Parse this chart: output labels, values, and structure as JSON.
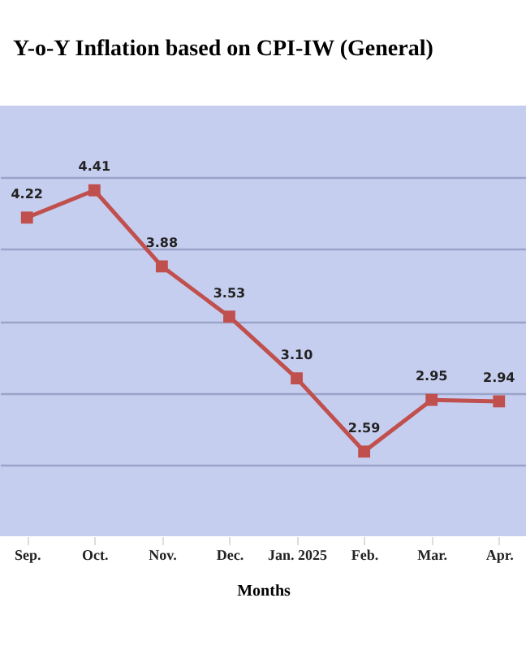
{
  "chart_data": {
    "type": "line",
    "title": "Y-o-Y Inflation based on CPI-IW (General)",
    "xlabel": "Months",
    "categories": [
      "Sep.",
      "Oct.",
      "Nov.",
      "Dec.",
      "Jan. 2025",
      "Feb.",
      "Mar.",
      "Apr."
    ],
    "series": [
      {
        "color": "#c0504d",
        "values": [
          4.22,
          4.41,
          3.88,
          3.53,
          3.1,
          2.59,
          2.95,
          2.94
        ],
        "value_labels": [
          "4.22",
          "4.41",
          "3.88",
          "3.53",
          "3.10",
          "2.59",
          "2.95",
          "2.94"
        ]
      }
    ],
    "ylim": [
      2,
      5
    ],
    "yticks": [
      {
        "value": 2.5,
        "label": null
      },
      {
        "value": 3,
        "label": null
      },
      {
        "value": 3.5,
        "label": null
      },
      {
        "value": 4,
        "label": null
      },
      {
        "value": 4.5,
        "label": null
      }
    ],
    "tick_labels": "x",
    "grid": "y",
    "marker": "square",
    "line_style": "solid"
  }
}
